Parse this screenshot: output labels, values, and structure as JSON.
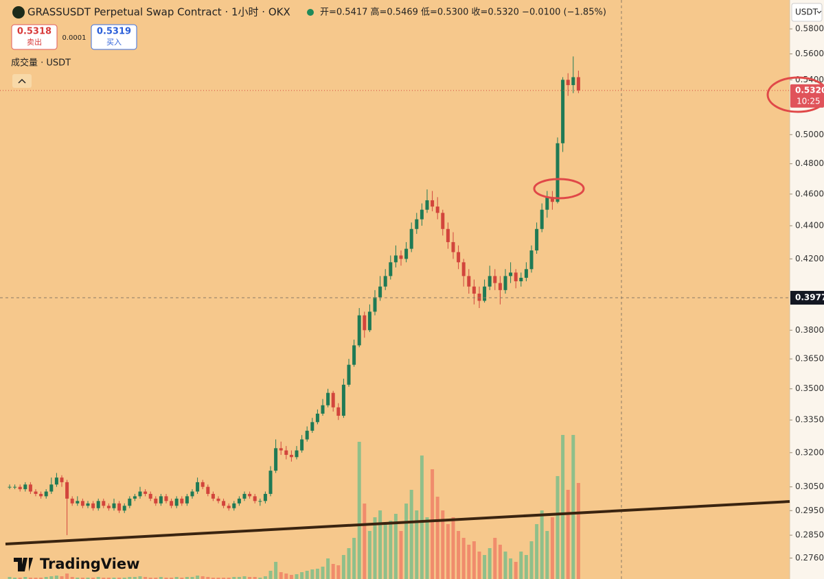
{
  "header": {
    "title": "GRASSUSDT Perpetual Swap Contract · 1小时 · OKX",
    "ohlc": "开=0.5417 高=0.5469 低=0.5300 收=0.5320 −0.0100 (−1.85%)"
  },
  "sell": {
    "price": "0.5318",
    "label": "卖出"
  },
  "spread": "0.0001",
  "buy": {
    "price": "0.5319",
    "label": "买入"
  },
  "volume_label": "成交量 · USDT",
  "currency": "USDT",
  "countdown": "10:25",
  "logo": "TradingView",
  "chart_data": {
    "type": "candlestick",
    "log_scale": true,
    "ylim": [
      0.268,
      0.604
    ],
    "yticks": [
      {
        "value": 0.58,
        "label": "0.5800"
      },
      {
        "value": 0.56,
        "label": "0.5600"
      },
      {
        "value": 0.54,
        "label": "0.5400"
      },
      {
        "value": 0.5,
        "label": "0.5000"
      },
      {
        "value": 0.48,
        "label": "0.4800"
      },
      {
        "value": 0.46,
        "label": "0.4600"
      },
      {
        "value": 0.44,
        "label": "0.4400"
      },
      {
        "value": 0.42,
        "label": "0.4200"
      },
      {
        "value": 0.38,
        "label": "0.3800"
      },
      {
        "value": 0.365,
        "label": "0.3650"
      },
      {
        "value": 0.35,
        "label": "0.3500"
      },
      {
        "value": 0.335,
        "label": "0.3350"
      },
      {
        "value": 0.32,
        "label": "0.3200"
      },
      {
        "value": 0.305,
        "label": "0.3050"
      },
      {
        "value": 0.295,
        "label": "0.2950"
      },
      {
        "value": 0.285,
        "label": "0.2850"
      },
      {
        "value": 0.276,
        "label": "0.2760"
      }
    ],
    "up_color": "#1f7a55",
    "down_color": "#d2453c",
    "volume_up_color": "#8fbf8a",
    "volume_down_color": "#f08c6c",
    "last_price": {
      "value": 0.532,
      "label": "0.5320"
    },
    "crosshair": 0.3977,
    "candles": [
      [
        0.305,
        0.306,
        0.304,
        0.305
      ],
      [
        0.305,
        0.306,
        0.304,
        0.305
      ],
      [
        0.305,
        0.306,
        0.303,
        0.304
      ],
      [
        0.304,
        0.307,
        0.303,
        0.306
      ],
      [
        0.306,
        0.307,
        0.302,
        0.303
      ],
      [
        0.303,
        0.304,
        0.301,
        0.302
      ],
      [
        0.302,
        0.303,
        0.3,
        0.301
      ],
      [
        0.301,
        0.304,
        0.3,
        0.303
      ],
      [
        0.303,
        0.309,
        0.302,
        0.306
      ],
      [
        0.306,
        0.311,
        0.305,
        0.309
      ],
      [
        0.309,
        0.31,
        0.305,
        0.307
      ],
      [
        0.307,
        0.308,
        0.285,
        0.3
      ],
      [
        0.3,
        0.301,
        0.297,
        0.298
      ],
      [
        0.298,
        0.301,
        0.297,
        0.299
      ],
      [
        0.299,
        0.3,
        0.296,
        0.297
      ],
      [
        0.297,
        0.299,
        0.296,
        0.298
      ],
      [
        0.298,
        0.299,
        0.295,
        0.296
      ],
      [
        0.296,
        0.3,
        0.295,
        0.299
      ],
      [
        0.299,
        0.3,
        0.296,
        0.297
      ],
      [
        0.297,
        0.298,
        0.295,
        0.296
      ],
      [
        0.296,
        0.3,
        0.295,
        0.298
      ],
      [
        0.298,
        0.299,
        0.294,
        0.295
      ],
      [
        0.295,
        0.298,
        0.294,
        0.297
      ],
      [
        0.297,
        0.301,
        0.296,
        0.3
      ],
      [
        0.3,
        0.302,
        0.299,
        0.301
      ],
      [
        0.301,
        0.305,
        0.3,
        0.303
      ],
      [
        0.303,
        0.304,
        0.301,
        0.302
      ],
      [
        0.302,
        0.303,
        0.299,
        0.3
      ],
      [
        0.3,
        0.301,
        0.297,
        0.298
      ],
      [
        0.298,
        0.302,
        0.297,
        0.301
      ],
      [
        0.301,
        0.302,
        0.298,
        0.299
      ],
      [
        0.299,
        0.3,
        0.296,
        0.297
      ],
      [
        0.297,
        0.301,
        0.296,
        0.3
      ],
      [
        0.3,
        0.301,
        0.297,
        0.298
      ],
      [
        0.298,
        0.302,
        0.297,
        0.301
      ],
      [
        0.301,
        0.304,
        0.3,
        0.303
      ],
      [
        0.303,
        0.309,
        0.302,
        0.307
      ],
      [
        0.307,
        0.308,
        0.304,
        0.305
      ],
      [
        0.305,
        0.306,
        0.301,
        0.302
      ],
      [
        0.302,
        0.303,
        0.299,
        0.3
      ],
      [
        0.3,
        0.301,
        0.298,
        0.299
      ],
      [
        0.299,
        0.3,
        0.296,
        0.297
      ],
      [
        0.297,
        0.298,
        0.295,
        0.296
      ],
      [
        0.296,
        0.299,
        0.295,
        0.298
      ],
      [
        0.298,
        0.301,
        0.297,
        0.3
      ],
      [
        0.3,
        0.303,
        0.299,
        0.302
      ],
      [
        0.302,
        0.303,
        0.3,
        0.301
      ],
      [
        0.301,
        0.302,
        0.298,
        0.299
      ],
      [
        0.299,
        0.3,
        0.297,
        0.299
      ],
      [
        0.299,
        0.303,
        0.298,
        0.302
      ],
      [
        0.302,
        0.314,
        0.301,
        0.312
      ],
      [
        0.312,
        0.326,
        0.311,
        0.322
      ],
      [
        0.322,
        0.325,
        0.319,
        0.321
      ],
      [
        0.321,
        0.323,
        0.317,
        0.319
      ],
      [
        0.319,
        0.321,
        0.316,
        0.318
      ],
      [
        0.318,
        0.323,
        0.317,
        0.321
      ],
      [
        0.321,
        0.328,
        0.32,
        0.326
      ],
      [
        0.326,
        0.332,
        0.325,
        0.33
      ],
      [
        0.33,
        0.336,
        0.329,
        0.334
      ],
      [
        0.334,
        0.34,
        0.333,
        0.338
      ],
      [
        0.338,
        0.345,
        0.337,
        0.342
      ],
      [
        0.342,
        0.35,
        0.341,
        0.348
      ],
      [
        0.348,
        0.349,
        0.339,
        0.341
      ],
      [
        0.341,
        0.343,
        0.335,
        0.337
      ],
      [
        0.337,
        0.355,
        0.336,
        0.352
      ],
      [
        0.352,
        0.365,
        0.351,
        0.362
      ],
      [
        0.362,
        0.375,
        0.361,
        0.372
      ],
      [
        0.372,
        0.392,
        0.371,
        0.388
      ],
      [
        0.388,
        0.39,
        0.376,
        0.38
      ],
      [
        0.38,
        0.394,
        0.379,
        0.39
      ],
      [
        0.39,
        0.402,
        0.388,
        0.398
      ],
      [
        0.398,
        0.41,
        0.396,
        0.404
      ],
      [
        0.404,
        0.414,
        0.402,
        0.41
      ],
      [
        0.41,
        0.422,
        0.408,
        0.418
      ],
      [
        0.418,
        0.428,
        0.415,
        0.422
      ],
      [
        0.422,
        0.425,
        0.416,
        0.42
      ],
      [
        0.42,
        0.43,
        0.418,
        0.426
      ],
      [
        0.426,
        0.442,
        0.424,
        0.438
      ],
      [
        0.438,
        0.448,
        0.435,
        0.444
      ],
      [
        0.444,
        0.454,
        0.44,
        0.45
      ],
      [
        0.45,
        0.463,
        0.448,
        0.456
      ],
      [
        0.456,
        0.462,
        0.449,
        0.452
      ],
      [
        0.452,
        0.458,
        0.444,
        0.448
      ],
      [
        0.448,
        0.45,
        0.434,
        0.438
      ],
      [
        0.438,
        0.442,
        0.426,
        0.43
      ],
      [
        0.43,
        0.436,
        0.42,
        0.424
      ],
      [
        0.424,
        0.428,
        0.414,
        0.418
      ],
      [
        0.418,
        0.42,
        0.404,
        0.41
      ],
      [
        0.41,
        0.414,
        0.4,
        0.404
      ],
      [
        0.404,
        0.408,
        0.394,
        0.4
      ],
      [
        0.4,
        0.404,
        0.392,
        0.396
      ],
      [
        0.396,
        0.408,
        0.395,
        0.404
      ],
      [
        0.404,
        0.416,
        0.402,
        0.41
      ],
      [
        0.41,
        0.414,
        0.402,
        0.406
      ],
      [
        0.406,
        0.41,
        0.394,
        0.402
      ],
      [
        0.402,
        0.414,
        0.4,
        0.41
      ],
      [
        0.41,
        0.418,
        0.406,
        0.412
      ],
      [
        0.412,
        0.414,
        0.403,
        0.407
      ],
      [
        0.407,
        0.412,
        0.404,
        0.409
      ],
      [
        0.409,
        0.418,
        0.407,
        0.414
      ],
      [
        0.414,
        0.428,
        0.412,
        0.425
      ],
      [
        0.425,
        0.442,
        0.423,
        0.438
      ],
      [
        0.438,
        0.454,
        0.436,
        0.45
      ],
      [
        0.45,
        0.462,
        0.445,
        0.458
      ],
      [
        0.458,
        0.462,
        0.45,
        0.455
      ],
      [
        0.455,
        0.498,
        0.454,
        0.494
      ],
      [
        0.494,
        0.542,
        0.488,
        0.54
      ],
      [
        0.54,
        0.545,
        0.528,
        0.536
      ],
      [
        0.536,
        0.558,
        0.53,
        0.542
      ],
      [
        0.542,
        0.547,
        0.53,
        0.532
      ]
    ],
    "vlim": [
      0,
      220
    ],
    "volume": [
      3,
      2,
      2,
      3,
      2,
      2,
      2,
      3,
      4,
      5,
      4,
      8,
      3,
      2,
      2,
      2,
      2,
      3,
      2,
      2,
      2,
      2,
      2,
      3,
      3,
      4,
      3,
      2,
      2,
      3,
      2,
      2,
      3,
      2,
      3,
      3,
      5,
      4,
      3,
      2,
      2,
      2,
      2,
      3,
      3,
      4,
      3,
      3,
      2,
      4,
      12,
      25,
      10,
      8,
      6,
      7,
      10,
      12,
      14,
      15,
      18,
      30,
      22,
      20,
      35,
      45,
      60,
      200,
      110,
      70,
      90,
      100,
      80,
      85,
      95,
      70,
      110,
      130,
      100,
      180,
      90,
      160,
      120,
      100,
      80,
      90,
      70,
      60,
      50,
      55,
      40,
      35,
      45,
      60,
      50,
      40,
      30,
      25,
      40,
      35,
      55,
      80,
      100,
      70,
      90,
      150,
      210,
      130,
      210,
      140
    ]
  }
}
